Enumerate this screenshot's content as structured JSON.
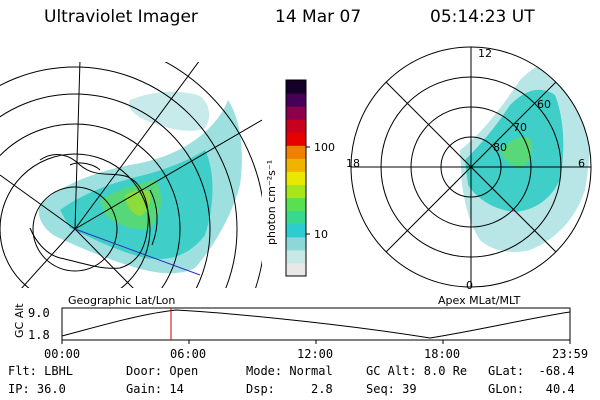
{
  "header": {
    "instrument": "Ultraviolet Imager",
    "date": "14 Mar 07",
    "time": "05:14:23 UT"
  },
  "left_panel": {
    "label": "Geographic Lat/Lon"
  },
  "right_panel": {
    "label": "Apex MLat/MLT",
    "lat_labels": [
      "80",
      "70",
      "60"
    ],
    "mlt_labels": [
      "12",
      "18",
      "6",
      "0"
    ]
  },
  "colorbar": {
    "unit_label": "photon cm⁻²s⁻¹",
    "tick_labels": [
      "100",
      "10"
    ],
    "colors": [
      "#e8e8e8",
      "#c8e8e8",
      "#8cd8d8",
      "#2ecbd0",
      "#38d890",
      "#58e050",
      "#a6e61e",
      "#e8e800",
      "#f0b400",
      "#f08000",
      "#e80000",
      "#c80020",
      "#8c004c",
      "#460058",
      "#140028"
    ]
  },
  "altitude_plot": {
    "ylabel": "GC Alt",
    "y_ticks": [
      "9.0",
      "1.8"
    ],
    "x_ticks": [
      "00:00",
      "06:00",
      "12:00",
      "18:00",
      "23:59"
    ],
    "marker_color": "#d00000"
  },
  "info": {
    "flt": "Flt: LBHL",
    "ip": "IP: 36.0",
    "door": "Door: Open",
    "gain": "Gain: 14",
    "mode": "Mode: Normal",
    "dsp": "Dsp:     2.8",
    "gcalt": "GC Alt: 8.0 Re",
    "seq": "Seq: 39",
    "glat": "GLat:  -68.4",
    "glon": "GLon:   40.4"
  }
}
